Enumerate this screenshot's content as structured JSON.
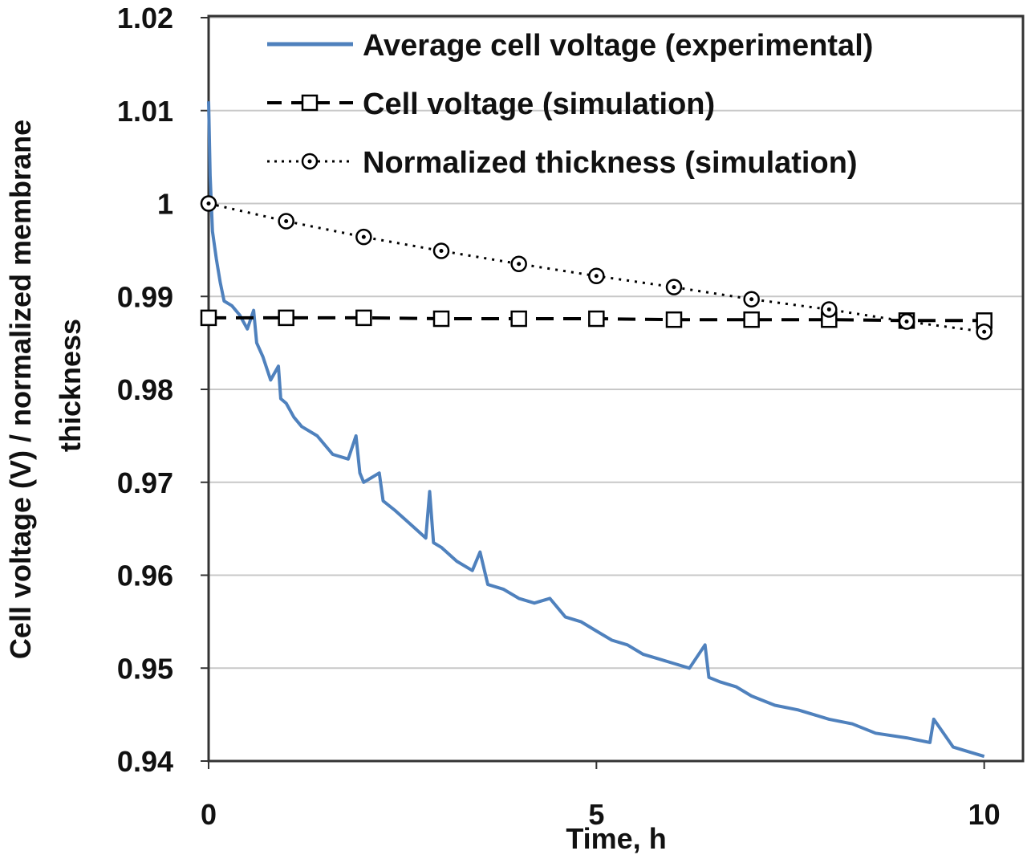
{
  "chart_data": {
    "type": "line",
    "title": "",
    "xlabel": "Time, h",
    "ylabel": [
      "Cell voltage (V) / normalized membrane",
      "thickness"
    ],
    "xlim": [
      0,
      10.5
    ],
    "ylim": [
      0.94,
      1.02
    ],
    "xticks": [
      "0",
      "5",
      "10"
    ],
    "xtick_values": [
      0,
      5,
      10
    ],
    "yticks": [
      "0.94",
      "0.95",
      "0.96",
      "0.97",
      "0.98",
      "0.99",
      "1",
      "1.01",
      "1.02"
    ],
    "ytick_values": [
      0.94,
      0.95,
      0.96,
      0.97,
      0.98,
      0.99,
      1.0,
      1.01,
      1.02
    ],
    "grid": "horizontal",
    "legend_placement": "top",
    "series": [
      {
        "name": "Average cell voltage (experimental)",
        "color": "#4f81bd",
        "style": "solid",
        "x": [
          0,
          0.02,
          0.05,
          0.1,
          0.15,
          0.2,
          0.3,
          0.4,
          0.5,
          0.58,
          0.62,
          0.7,
          0.8,
          0.9,
          0.93,
          1.0,
          1.1,
          1.2,
          1.4,
          1.6,
          1.8,
          1.9,
          1.95,
          2.0,
          2.1,
          2.2,
          2.25,
          2.4,
          2.6,
          2.8,
          2.85,
          2.9,
          3.0,
          3.2,
          3.4,
          3.5,
          3.6,
          3.8,
          4.0,
          4.2,
          4.4,
          4.6,
          4.8,
          5.0,
          5.2,
          5.4,
          5.6,
          5.8,
          6.0,
          6.2,
          6.4,
          6.45,
          6.6,
          6.8,
          7.0,
          7.3,
          7.6,
          8.0,
          8.3,
          8.6,
          9.0,
          9.3,
          9.35,
          9.6,
          9.8,
          10.0
        ],
        "y": [
          1.011,
          1.003,
          0.997,
          0.994,
          0.9915,
          0.9895,
          0.989,
          0.988,
          0.9865,
          0.9885,
          0.985,
          0.9835,
          0.981,
          0.9825,
          0.979,
          0.9785,
          0.977,
          0.976,
          0.975,
          0.973,
          0.9725,
          0.975,
          0.971,
          0.97,
          0.9705,
          0.971,
          0.968,
          0.967,
          0.9655,
          0.964,
          0.969,
          0.9635,
          0.963,
          0.9615,
          0.9605,
          0.9625,
          0.959,
          0.9585,
          0.9575,
          0.957,
          0.9575,
          0.9555,
          0.955,
          0.954,
          0.953,
          0.9525,
          0.9515,
          0.951,
          0.9505,
          0.95,
          0.9525,
          0.949,
          0.9485,
          0.948,
          0.947,
          0.946,
          0.9455,
          0.9445,
          0.944,
          0.943,
          0.9425,
          0.942,
          0.9445,
          0.9415,
          0.941,
          0.9405
        ]
      },
      {
        "name": "Cell voltage (simulation)",
        "color": "#000000",
        "style": "dashed",
        "marker": "square",
        "x": [
          0,
          1,
          2,
          3,
          4,
          5,
          6,
          7,
          8,
          9,
          10
        ],
        "y": [
          0.9877,
          0.9877,
          0.9877,
          0.9876,
          0.9876,
          0.9876,
          0.9875,
          0.9875,
          0.9875,
          0.9874,
          0.9874
        ]
      },
      {
        "name": "Normalized thickness (simulation)",
        "color": "#000000",
        "style": "dotted",
        "marker": "circle",
        "x": [
          0,
          1,
          2,
          3,
          4,
          5,
          6,
          7,
          8,
          9,
          10
        ],
        "y": [
          1.0,
          0.9981,
          0.9964,
          0.9949,
          0.9935,
          0.9922,
          0.991,
          0.9897,
          0.9886,
          0.9873,
          0.9862
        ]
      }
    ]
  }
}
